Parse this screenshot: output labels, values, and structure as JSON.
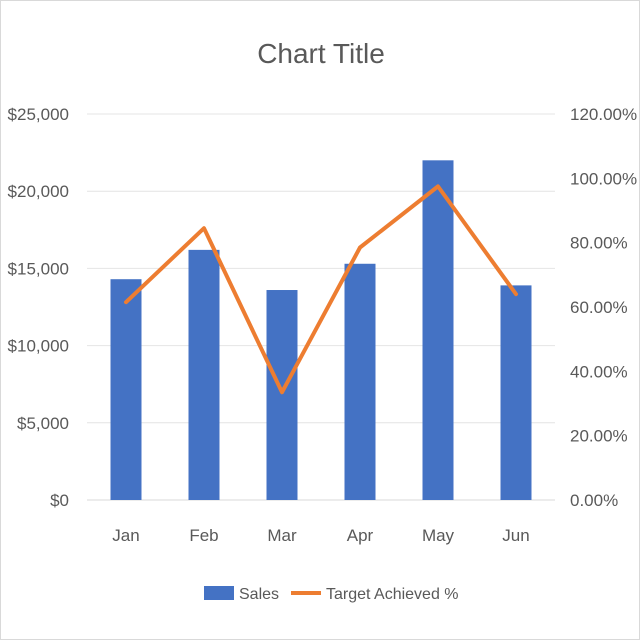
{
  "chart_data": {
    "type": "bar",
    "title": "Chart Title",
    "categories": [
      "Jan",
      "Feb",
      "Mar",
      "Apr",
      "May",
      "Jun"
    ],
    "series": [
      {
        "name": "Sales",
        "type": "bar",
        "axis": "left",
        "color": "#4472c4",
        "values": [
          14300,
          16200,
          13600,
          15300,
          22000,
          13900
        ]
      },
      {
        "name": "Target Achieved %",
        "type": "line",
        "axis": "right",
        "color": "#ed7d31",
        "values": [
          61.5,
          84.5,
          33.5,
          78.5,
          97.5,
          64.0
        ]
      }
    ],
    "y_left": {
      "range": [
        0,
        25000
      ],
      "ticks": [
        0,
        5000,
        10000,
        15000,
        20000,
        25000
      ],
      "tick_labels": [
        "$0",
        "$5,000",
        "$10,000",
        "$15,000",
        "$20,000",
        "$25,000"
      ]
    },
    "y_right": {
      "range": [
        0,
        120
      ],
      "ticks": [
        0,
        20,
        40,
        60,
        80,
        100,
        120
      ],
      "tick_labels": [
        "0.00%",
        "20.00%",
        "40.00%",
        "60.00%",
        "80.00%",
        "100.00%",
        "120.00%"
      ]
    },
    "grid": true,
    "legend_position": "bottom"
  }
}
